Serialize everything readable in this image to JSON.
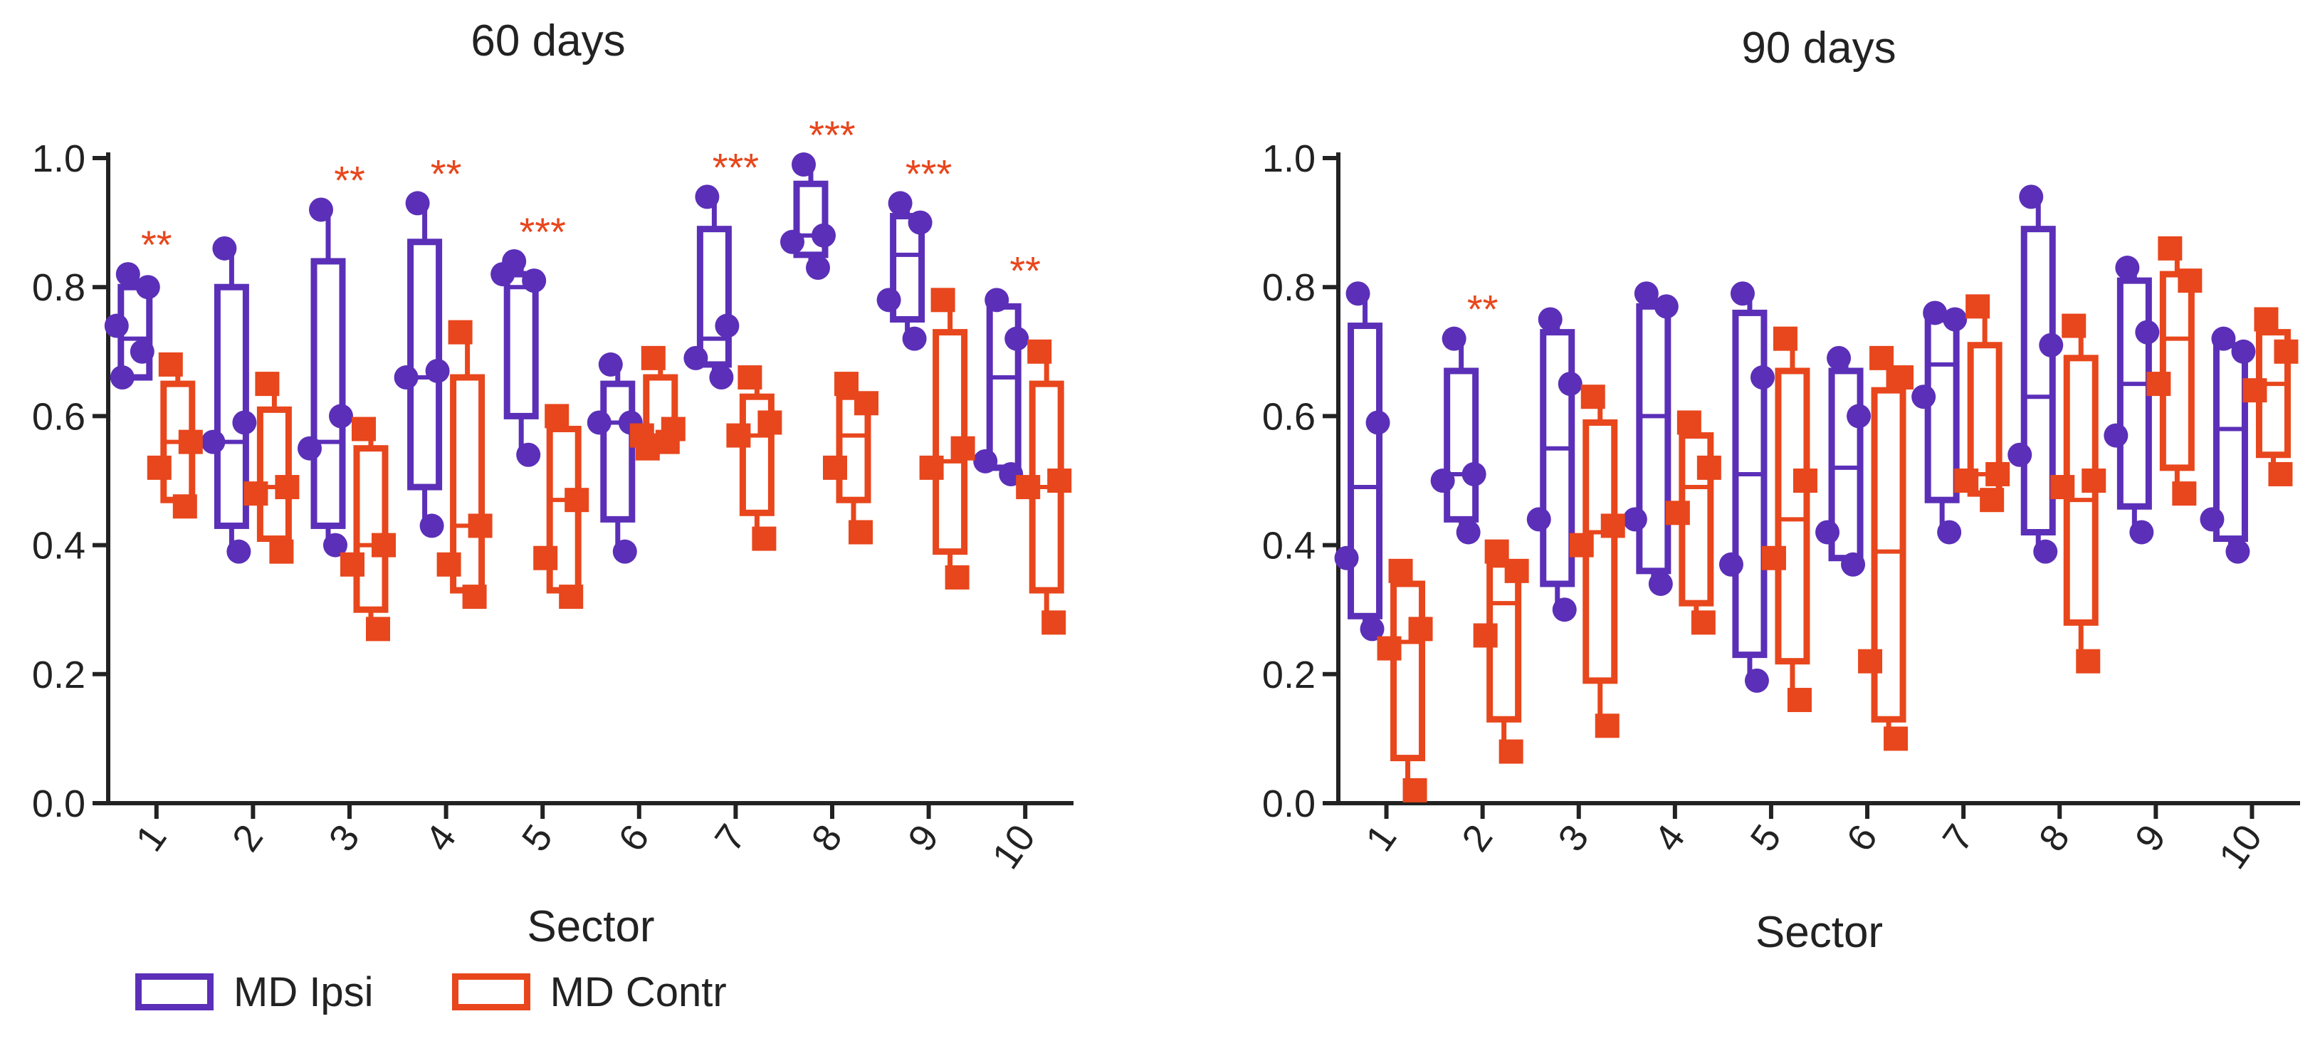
{
  "colors": {
    "ipsi": "#5b2fb8",
    "contr": "#e8461c",
    "axis": "#222222",
    "sig": "#e8461c"
  },
  "legend": {
    "ipsi_label": "MD Ipsi",
    "contr_label": "MD Contr"
  },
  "chart_data": [
    {
      "type": "box",
      "title": "60 days",
      "xlabel": "Sector",
      "ylabel": "",
      "ylim": [
        0,
        1
      ],
      "yticks": [
        "0.0",
        "0.2",
        "0.4",
        "0.6",
        "0.8",
        "1.0"
      ],
      "categories": [
        "1",
        "2",
        "3",
        "4",
        "5",
        "6",
        "7",
        "8",
        "9",
        "10"
      ],
      "significance": [
        "**",
        "",
        "**",
        "**",
        "***",
        "",
        "***",
        "***",
        "***",
        "**"
      ],
      "series": [
        {
          "name": "MD Ipsi",
          "boxes": [
            {
              "min": 0.66,
              "q1": 0.66,
              "median": 0.72,
              "q3": 0.8,
              "max": 0.82,
              "points": [
                0.82,
                0.8,
                0.74,
                0.7,
                0.66
              ]
            },
            {
              "min": 0.39,
              "q1": 0.43,
              "median": 0.56,
              "q3": 0.8,
              "max": 0.86,
              "points": [
                0.86,
                0.59,
                0.56,
                0.39
              ]
            },
            {
              "min": 0.4,
              "q1": 0.43,
              "median": 0.56,
              "q3": 0.84,
              "max": 0.92,
              "points": [
                0.92,
                0.6,
                0.55,
                0.4
              ]
            },
            {
              "min": 0.43,
              "q1": 0.49,
              "median": 0.66,
              "q3": 0.87,
              "max": 0.93,
              "points": [
                0.93,
                0.67,
                0.66,
                0.43
              ]
            },
            {
              "min": 0.54,
              "q1": 0.6,
              "median": 0.8,
              "q3": 0.82,
              "max": 0.84,
              "points": [
                0.84,
                0.81,
                0.82,
                0.54
              ]
            },
            {
              "min": 0.39,
              "q1": 0.44,
              "median": 0.59,
              "q3": 0.65,
              "max": 0.68,
              "points": [
                0.68,
                0.59,
                0.59,
                0.39
              ]
            },
            {
              "min": 0.66,
              "q1": 0.68,
              "median": 0.72,
              "q3": 0.89,
              "max": 0.94,
              "points": [
                0.94,
                0.74,
                0.69,
                0.66
              ]
            },
            {
              "min": 0.83,
              "q1": 0.85,
              "median": 0.88,
              "q3": 0.96,
              "max": 0.99,
              "points": [
                0.99,
                0.88,
                0.87,
                0.83
              ]
            },
            {
              "min": 0.72,
              "q1": 0.75,
              "median": 0.85,
              "q3": 0.91,
              "max": 0.93,
              "points": [
                0.93,
                0.9,
                0.78,
                0.72
              ]
            },
            {
              "min": 0.51,
              "q1": 0.52,
              "median": 0.66,
              "q3": 0.77,
              "max": 0.78,
              "points": [
                0.78,
                0.72,
                0.53,
                0.51
              ]
            }
          ]
        },
        {
          "name": "MD Contr",
          "boxes": [
            {
              "min": 0.46,
              "q1": 0.47,
              "median": 0.56,
              "q3": 0.65,
              "max": 0.68,
              "points": [
                0.68,
                0.56,
                0.52,
                0.46
              ]
            },
            {
              "min": 0.39,
              "q1": 0.41,
              "median": 0.49,
              "q3": 0.61,
              "max": 0.65,
              "points": [
                0.65,
                0.49,
                0.48,
                0.39
              ]
            },
            {
              "min": 0.27,
              "q1": 0.3,
              "median": 0.4,
              "q3": 0.55,
              "max": 0.58,
              "points": [
                0.58,
                0.4,
                0.37,
                0.27
              ]
            },
            {
              "min": 0.32,
              "q1": 0.33,
              "median": 0.43,
              "q3": 0.66,
              "max": 0.73,
              "points": [
                0.73,
                0.43,
                0.37,
                0.32
              ]
            },
            {
              "min": 0.32,
              "q1": 0.33,
              "median": 0.47,
              "q3": 0.58,
              "max": 0.6,
              "points": [
                0.6,
                0.47,
                0.38,
                0.32
              ]
            },
            {
              "min": 0.55,
              "q1": 0.56,
              "median": 0.57,
              "q3": 0.66,
              "max": 0.69,
              "points": [
                0.69,
                0.58,
                0.57,
                0.56,
                0.55
              ]
            },
            {
              "min": 0.41,
              "q1": 0.45,
              "median": 0.57,
              "q3": 0.63,
              "max": 0.66,
              "points": [
                0.66,
                0.59,
                0.57,
                0.41
              ]
            },
            {
              "min": 0.42,
              "q1": 0.47,
              "median": 0.57,
              "q3": 0.63,
              "max": 0.65,
              "points": [
                0.65,
                0.62,
                0.52,
                0.42
              ]
            },
            {
              "min": 0.35,
              "q1": 0.39,
              "median": 0.53,
              "q3": 0.73,
              "max": 0.78,
              "points": [
                0.78,
                0.55,
                0.52,
                0.35
              ]
            },
            {
              "min": 0.28,
              "q1": 0.33,
              "median": 0.49,
              "q3": 0.65,
              "max": 0.7,
              "points": [
                0.7,
                0.5,
                0.49,
                0.28
              ]
            }
          ]
        }
      ]
    },
    {
      "type": "box",
      "title": "90 days",
      "xlabel": "Sector",
      "ylabel": "",
      "ylim": [
        0,
        1
      ],
      "yticks": [
        "0.0",
        "0.2",
        "0.4",
        "0.6",
        "0.8",
        "1.0"
      ],
      "categories": [
        "1",
        "2",
        "3",
        "4",
        "5",
        "6",
        "7",
        "8",
        "9",
        "10"
      ],
      "significance": [
        "",
        "**",
        "",
        "",
        "",
        "",
        "",
        "",
        "",
        ""
      ],
      "series": [
        {
          "name": "MD Ipsi",
          "boxes": [
            {
              "min": 0.27,
              "q1": 0.29,
              "median": 0.49,
              "q3": 0.74,
              "max": 0.79,
              "points": [
                0.79,
                0.59,
                0.38,
                0.27
              ]
            },
            {
              "min": 0.42,
              "q1": 0.44,
              "median": 0.51,
              "q3": 0.67,
              "max": 0.72,
              "points": [
                0.72,
                0.51,
                0.5,
                0.42
              ]
            },
            {
              "min": 0.3,
              "q1": 0.34,
              "median": 0.55,
              "q3": 0.73,
              "max": 0.75,
              "points": [
                0.75,
                0.65,
                0.44,
                0.3
              ]
            },
            {
              "min": 0.34,
              "q1": 0.36,
              "median": 0.6,
              "q3": 0.77,
              "max": 0.79,
              "points": [
                0.79,
                0.77,
                0.44,
                0.34
              ]
            },
            {
              "min": 0.19,
              "q1": 0.23,
              "median": 0.51,
              "q3": 0.76,
              "max": 0.79,
              "points": [
                0.79,
                0.66,
                0.37,
                0.19
              ]
            },
            {
              "min": 0.37,
              "q1": 0.38,
              "median": 0.52,
              "q3": 0.67,
              "max": 0.69,
              "points": [
                0.69,
                0.6,
                0.42,
                0.37
              ]
            },
            {
              "min": 0.42,
              "q1": 0.47,
              "median": 0.68,
              "q3": 0.75,
              "max": 0.76,
              "points": [
                0.76,
                0.75,
                0.63,
                0.42
              ]
            },
            {
              "min": 0.39,
              "q1": 0.42,
              "median": 0.63,
              "q3": 0.89,
              "max": 0.94,
              "points": [
                0.94,
                0.71,
                0.54,
                0.39
              ]
            },
            {
              "min": 0.42,
              "q1": 0.46,
              "median": 0.65,
              "q3": 0.81,
              "max": 0.83,
              "points": [
                0.83,
                0.73,
                0.57,
                0.42
              ]
            },
            {
              "min": 0.39,
              "q1": 0.41,
              "median": 0.58,
              "q3": 0.71,
              "max": 0.72,
              "points": [
                0.72,
                0.7,
                0.44,
                0.39
              ]
            }
          ]
        },
        {
          "name": "MD Contr",
          "boxes": [
            {
              "min": 0.02,
              "q1": 0.07,
              "median": 0.25,
              "q3": 0.34,
              "max": 0.36,
              "points": [
                0.36,
                0.27,
                0.24,
                0.02
              ]
            },
            {
              "min": 0.08,
              "q1": 0.13,
              "median": 0.31,
              "q3": 0.37,
              "max": 0.39,
              "points": [
                0.39,
                0.36,
                0.26,
                0.08
              ]
            },
            {
              "min": 0.12,
              "q1": 0.19,
              "median": 0.42,
              "q3": 0.59,
              "max": 0.63,
              "points": [
                0.63,
                0.43,
                0.4,
                0.12
              ]
            },
            {
              "min": 0.28,
              "q1": 0.31,
              "median": 0.49,
              "q3": 0.57,
              "max": 0.59,
              "points": [
                0.59,
                0.52,
                0.45,
                0.28
              ]
            },
            {
              "min": 0.16,
              "q1": 0.22,
              "median": 0.44,
              "q3": 0.67,
              "max": 0.72,
              "points": [
                0.72,
                0.5,
                0.38,
                0.16
              ]
            },
            {
              "min": 0.1,
              "q1": 0.13,
              "median": 0.39,
              "q3": 0.64,
              "max": 0.69,
              "points": [
                0.69,
                0.66,
                0.22,
                0.1
              ]
            },
            {
              "min": 0.47,
              "q1": 0.48,
              "median": 0.51,
              "q3": 0.71,
              "max": 0.77,
              "points": [
                0.77,
                0.51,
                0.5,
                0.47
              ]
            },
            {
              "min": 0.22,
              "q1": 0.28,
              "median": 0.47,
              "q3": 0.69,
              "max": 0.74,
              "points": [
                0.74,
                0.5,
                0.49,
                0.22
              ]
            },
            {
              "min": 0.48,
              "q1": 0.52,
              "median": 0.72,
              "q3": 0.82,
              "max": 0.86,
              "points": [
                0.86,
                0.81,
                0.65,
                0.48
              ]
            },
            {
              "min": 0.51,
              "q1": 0.54,
              "median": 0.65,
              "q3": 0.73,
              "max": 0.75,
              "points": [
                0.75,
                0.7,
                0.64,
                0.51
              ]
            }
          ]
        }
      ]
    }
  ]
}
